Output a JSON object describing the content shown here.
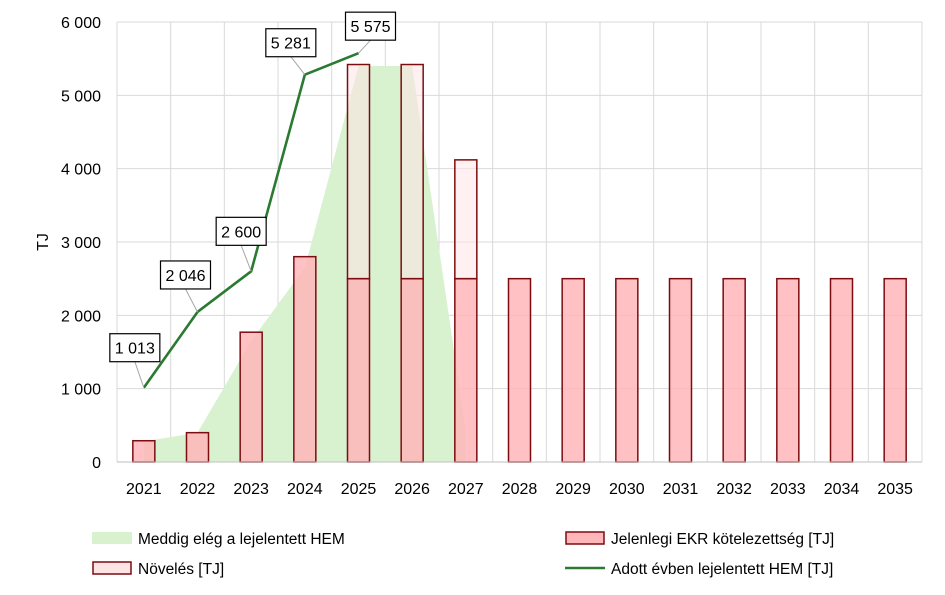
{
  "chart_data": {
    "type": "bar",
    "title": "",
    "xlabel": "",
    "ylabel": "TJ",
    "ylim": [
      0,
      6000
    ],
    "yticks": [
      0,
      1000,
      2000,
      3000,
      4000,
      5000,
      6000
    ],
    "ytick_labels": [
      "0",
      "1 000",
      "2 000",
      "3 000",
      "4 000",
      "5 000",
      "6 000"
    ],
    "grid": true,
    "legend_position": "bottom",
    "categories": [
      "2021",
      "2022",
      "2023",
      "2024",
      "2025",
      "2026",
      "2027",
      "2028",
      "2029",
      "2030",
      "2031",
      "2032",
      "2033",
      "2034",
      "2035"
    ],
    "series": [
      {
        "name": "Meddig elég a lejelentett  HEM",
        "kind": "area",
        "color": "#d8f2d0",
        "values": [
          280,
          400,
          1650,
          2650,
          5400,
          5400,
          420,
          null,
          null,
          null,
          null,
          null,
          null,
          null,
          null
        ]
      },
      {
        "name": "Jelenlegi EKR kötelezettség [TJ]",
        "kind": "bar-stacked",
        "color": "#ffb6b9",
        "edge": "#7b0c10",
        "values": [
          290,
          400,
          1770,
          2800,
          2500,
          2500,
          2500,
          2500,
          2500,
          2500,
          2500,
          2500,
          2500,
          2500,
          2500
        ]
      },
      {
        "name": "Növelés [TJ]",
        "kind": "bar-stacked",
        "color": "#ffe4e6",
        "edge": "#7b0c10",
        "values": [
          0,
          0,
          0,
          0,
          2920,
          2920,
          1620,
          0,
          0,
          0,
          0,
          0,
          0,
          0,
          0
        ]
      },
      {
        "name": "Adott évben lejelentett HEM [TJ]",
        "kind": "line",
        "color": "#2a7a31",
        "values": [
          1013,
          2046,
          2600,
          5281,
          5575,
          null,
          null,
          null,
          null,
          null,
          null,
          null,
          null,
          null,
          null
        ],
        "data_labels": [
          "1 013",
          "2 046",
          "2 600",
          "5 281",
          "5 575"
        ]
      }
    ]
  }
}
